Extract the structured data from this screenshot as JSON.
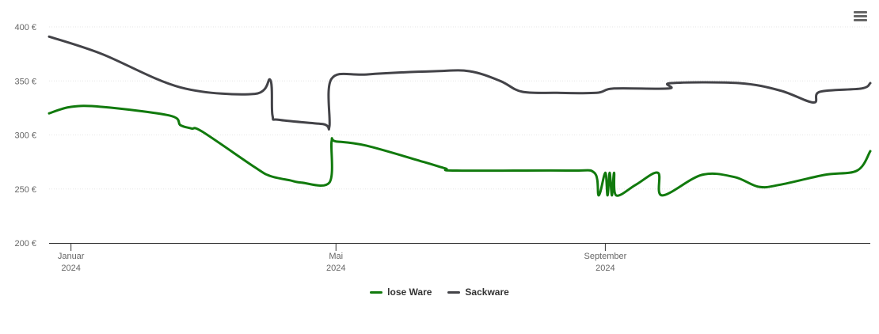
{
  "chart_data": {
    "type": "line",
    "title": "",
    "xlabel": "",
    "ylabel": "",
    "ylim": [
      200,
      400
    ],
    "y_ticks": [
      {
        "value": 200,
        "label": "200 €"
      },
      {
        "value": 250,
        "label": "250 €"
      },
      {
        "value": 300,
        "label": "300 €"
      },
      {
        "value": 350,
        "label": "350 €"
      },
      {
        "value": 400,
        "label": "400 €"
      }
    ],
    "xlim": [
      "2023-12-22",
      "2024-12-31"
    ],
    "x_ticks": [
      {
        "date": "2024-01-01",
        "month": "Januar",
        "year": "2024"
      },
      {
        "date": "2024-05-01",
        "month": "Mai",
        "year": "2024"
      },
      {
        "date": "2024-09-01",
        "month": "September",
        "year": "2024"
      }
    ],
    "grid": true,
    "legend_position": "bottom-center",
    "series": [
      {
        "name": "lose Ware",
        "color": "#117a0d",
        "points": [
          [
            "2023-12-22",
            320
          ],
          [
            "2024-01-01",
            326
          ],
          [
            "2024-01-15",
            326
          ],
          [
            "2024-02-15",
            318
          ],
          [
            "2024-02-20",
            309
          ],
          [
            "2024-02-25",
            306
          ],
          [
            "2024-03-01",
            303
          ],
          [
            "2024-03-25",
            270
          ],
          [
            "2024-04-01",
            262
          ],
          [
            "2024-04-10",
            258
          ],
          [
            "2024-04-15",
            256
          ],
          [
            "2024-04-28",
            256
          ],
          [
            "2024-04-29",
            294
          ],
          [
            "2024-05-01",
            294
          ],
          [
            "2024-05-15",
            290
          ],
          [
            "2024-06-10",
            275
          ],
          [
            "2024-06-20",
            269
          ],
          [
            "2024-06-25",
            267
          ],
          [
            "2024-08-15",
            267
          ],
          [
            "2024-08-27",
            265
          ],
          [
            "2024-08-29",
            244
          ],
          [
            "2024-09-01",
            265
          ],
          [
            "2024-09-02",
            244
          ],
          [
            "2024-09-03",
            265
          ],
          [
            "2024-09-04",
            244
          ],
          [
            "2024-09-05",
            265
          ],
          [
            "2024-09-06",
            244
          ],
          [
            "2024-09-15",
            254
          ],
          [
            "2024-09-25",
            265
          ],
          [
            "2024-09-27",
            244
          ],
          [
            "2024-10-15",
            263
          ],
          [
            "2024-10-30",
            261
          ],
          [
            "2024-11-10",
            252
          ],
          [
            "2024-11-20",
            254
          ],
          [
            "2024-12-10",
            263
          ],
          [
            "2024-12-25",
            267
          ],
          [
            "2024-12-31",
            285
          ]
        ]
      },
      {
        "name": "Sackware",
        "color": "#434348",
        "points": [
          [
            "2023-12-22",
            391
          ],
          [
            "2024-01-15",
            375
          ],
          [
            "2024-02-20",
            344
          ],
          [
            "2024-03-25",
            338
          ],
          [
            "2024-04-01",
            351
          ],
          [
            "2024-04-02",
            318
          ],
          [
            "2024-04-05",
            314
          ],
          [
            "2024-04-25",
            310
          ],
          [
            "2024-04-28",
            308
          ],
          [
            "2024-04-29",
            352
          ],
          [
            "2024-05-15",
            356
          ],
          [
            "2024-06-15",
            359
          ],
          [
            "2024-07-01",
            359
          ],
          [
            "2024-07-15",
            350
          ],
          [
            "2024-07-25",
            340
          ],
          [
            "2024-08-10",
            339
          ],
          [
            "2024-08-28",
            339
          ],
          [
            "2024-09-05",
            343
          ],
          [
            "2024-09-30",
            343
          ],
          [
            "2024-10-01",
            348
          ],
          [
            "2024-11-01",
            348
          ],
          [
            "2024-11-20",
            341
          ],
          [
            "2024-12-05",
            330
          ],
          [
            "2024-12-08",
            340
          ],
          [
            "2024-12-27",
            343
          ],
          [
            "2024-12-31",
            348
          ]
        ]
      }
    ]
  }
}
